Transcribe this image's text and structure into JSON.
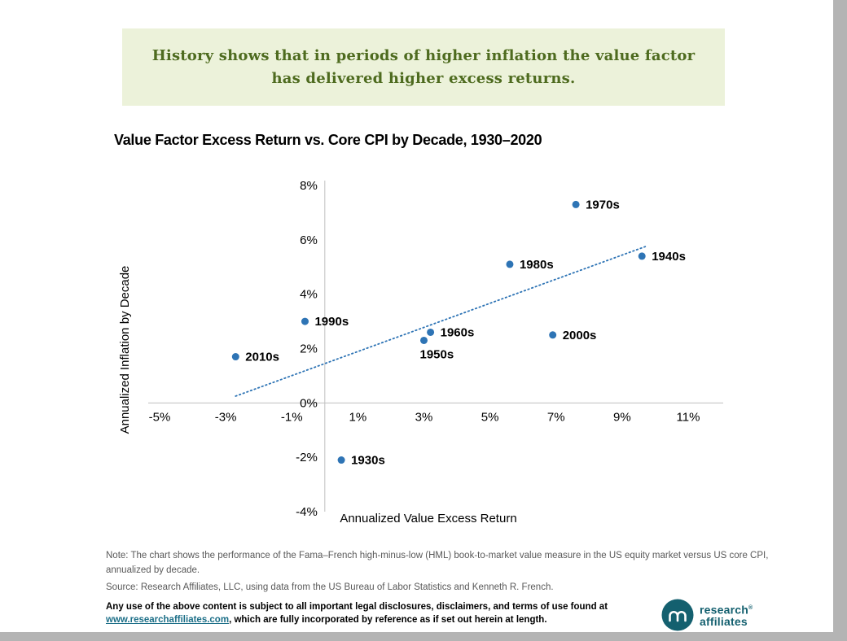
{
  "banner": {
    "line1": "History shows that in periods of higher inflation the value factor",
    "line2": "has delivered higher excess returns."
  },
  "chart_data": {
    "type": "scatter",
    "title": "Value Factor Excess Return vs. Core CPI by Decade, 1930–2020",
    "xlabel": "Annualized Value Excess Return",
    "ylabel": "Annualized Inflation by Decade",
    "xlim": [
      -5,
      11
    ],
    "ylim": [
      -4,
      8
    ],
    "grid": false,
    "legend": "none",
    "point_color": "#2e74b5",
    "trend_color": "#2e74b5",
    "axis_color": "#bfbfbf",
    "x_ticks": [
      {
        "value": -5,
        "label": "-5%"
      },
      {
        "value": -3,
        "label": "-3%"
      },
      {
        "value": -1,
        "label": "-1%"
      },
      {
        "value": 1,
        "label": "1%"
      },
      {
        "value": 3,
        "label": "3%"
      },
      {
        "value": 5,
        "label": "5%"
      },
      {
        "value": 7,
        "label": "7%"
      },
      {
        "value": 9,
        "label": "9%"
      },
      {
        "value": 11,
        "label": "11%"
      }
    ],
    "y_ticks": [
      {
        "value": 8,
        "label": "8%"
      },
      {
        "value": 6,
        "label": "6%"
      },
      {
        "value": 4,
        "label": "4%"
      },
      {
        "value": 2,
        "label": "2%"
      },
      {
        "value": 0,
        "label": "0%"
      },
      {
        "value": -2,
        "label": "-2%"
      },
      {
        "value": -4,
        "label": "-4%"
      }
    ],
    "points": [
      {
        "label": "1930s",
        "x": 0.5,
        "y": -2.1,
        "label_pos": "right"
      },
      {
        "label": "1940s",
        "x": 9.6,
        "y": 5.4,
        "label_pos": "right"
      },
      {
        "label": "1950s",
        "x": 3.0,
        "y": 2.3,
        "label_pos": "below"
      },
      {
        "label": "1960s",
        "x": 3.2,
        "y": 2.6,
        "label_pos": "right"
      },
      {
        "label": "1970s",
        "x": 7.6,
        "y": 7.3,
        "label_pos": "right"
      },
      {
        "label": "1980s",
        "x": 5.6,
        "y": 5.1,
        "label_pos": "right"
      },
      {
        "label": "1990s",
        "x": -0.6,
        "y": 3.0,
        "label_pos": "right"
      },
      {
        "label": "2000s",
        "x": 6.9,
        "y": 2.5,
        "label_pos": "right"
      },
      {
        "label": "2010s",
        "x": -2.7,
        "y": 1.7,
        "label_pos": "right"
      }
    ],
    "trendline": {
      "x1": -2.7,
      "y1": 0.25,
      "x2": 9.7,
      "y2": 5.75,
      "style": "dotted"
    }
  },
  "notes": {
    "note_line1": "Note: The chart shows the performance of the Fama–French high-minus-low (HML) book-to-market value measure in the US equity market versus US core CPI,",
    "note_line2": "annualized by decade.",
    "source": "Source: Research Affiliates, LLC, using data from the US Bureau of Labor Statistics and Kenneth R. French."
  },
  "legal": {
    "line1": "Any use of the above content is subject to all important legal disclosures, disclaimers, and terms of use found at",
    "link_text": "www.researchaffiliates.com",
    "line2_suffix": ", which are fully incorporated by reference as if set out herein at length."
  },
  "logo": {
    "line1": "research",
    "line2": "affiliates",
    "registered": "®",
    "color": "#14606f"
  }
}
